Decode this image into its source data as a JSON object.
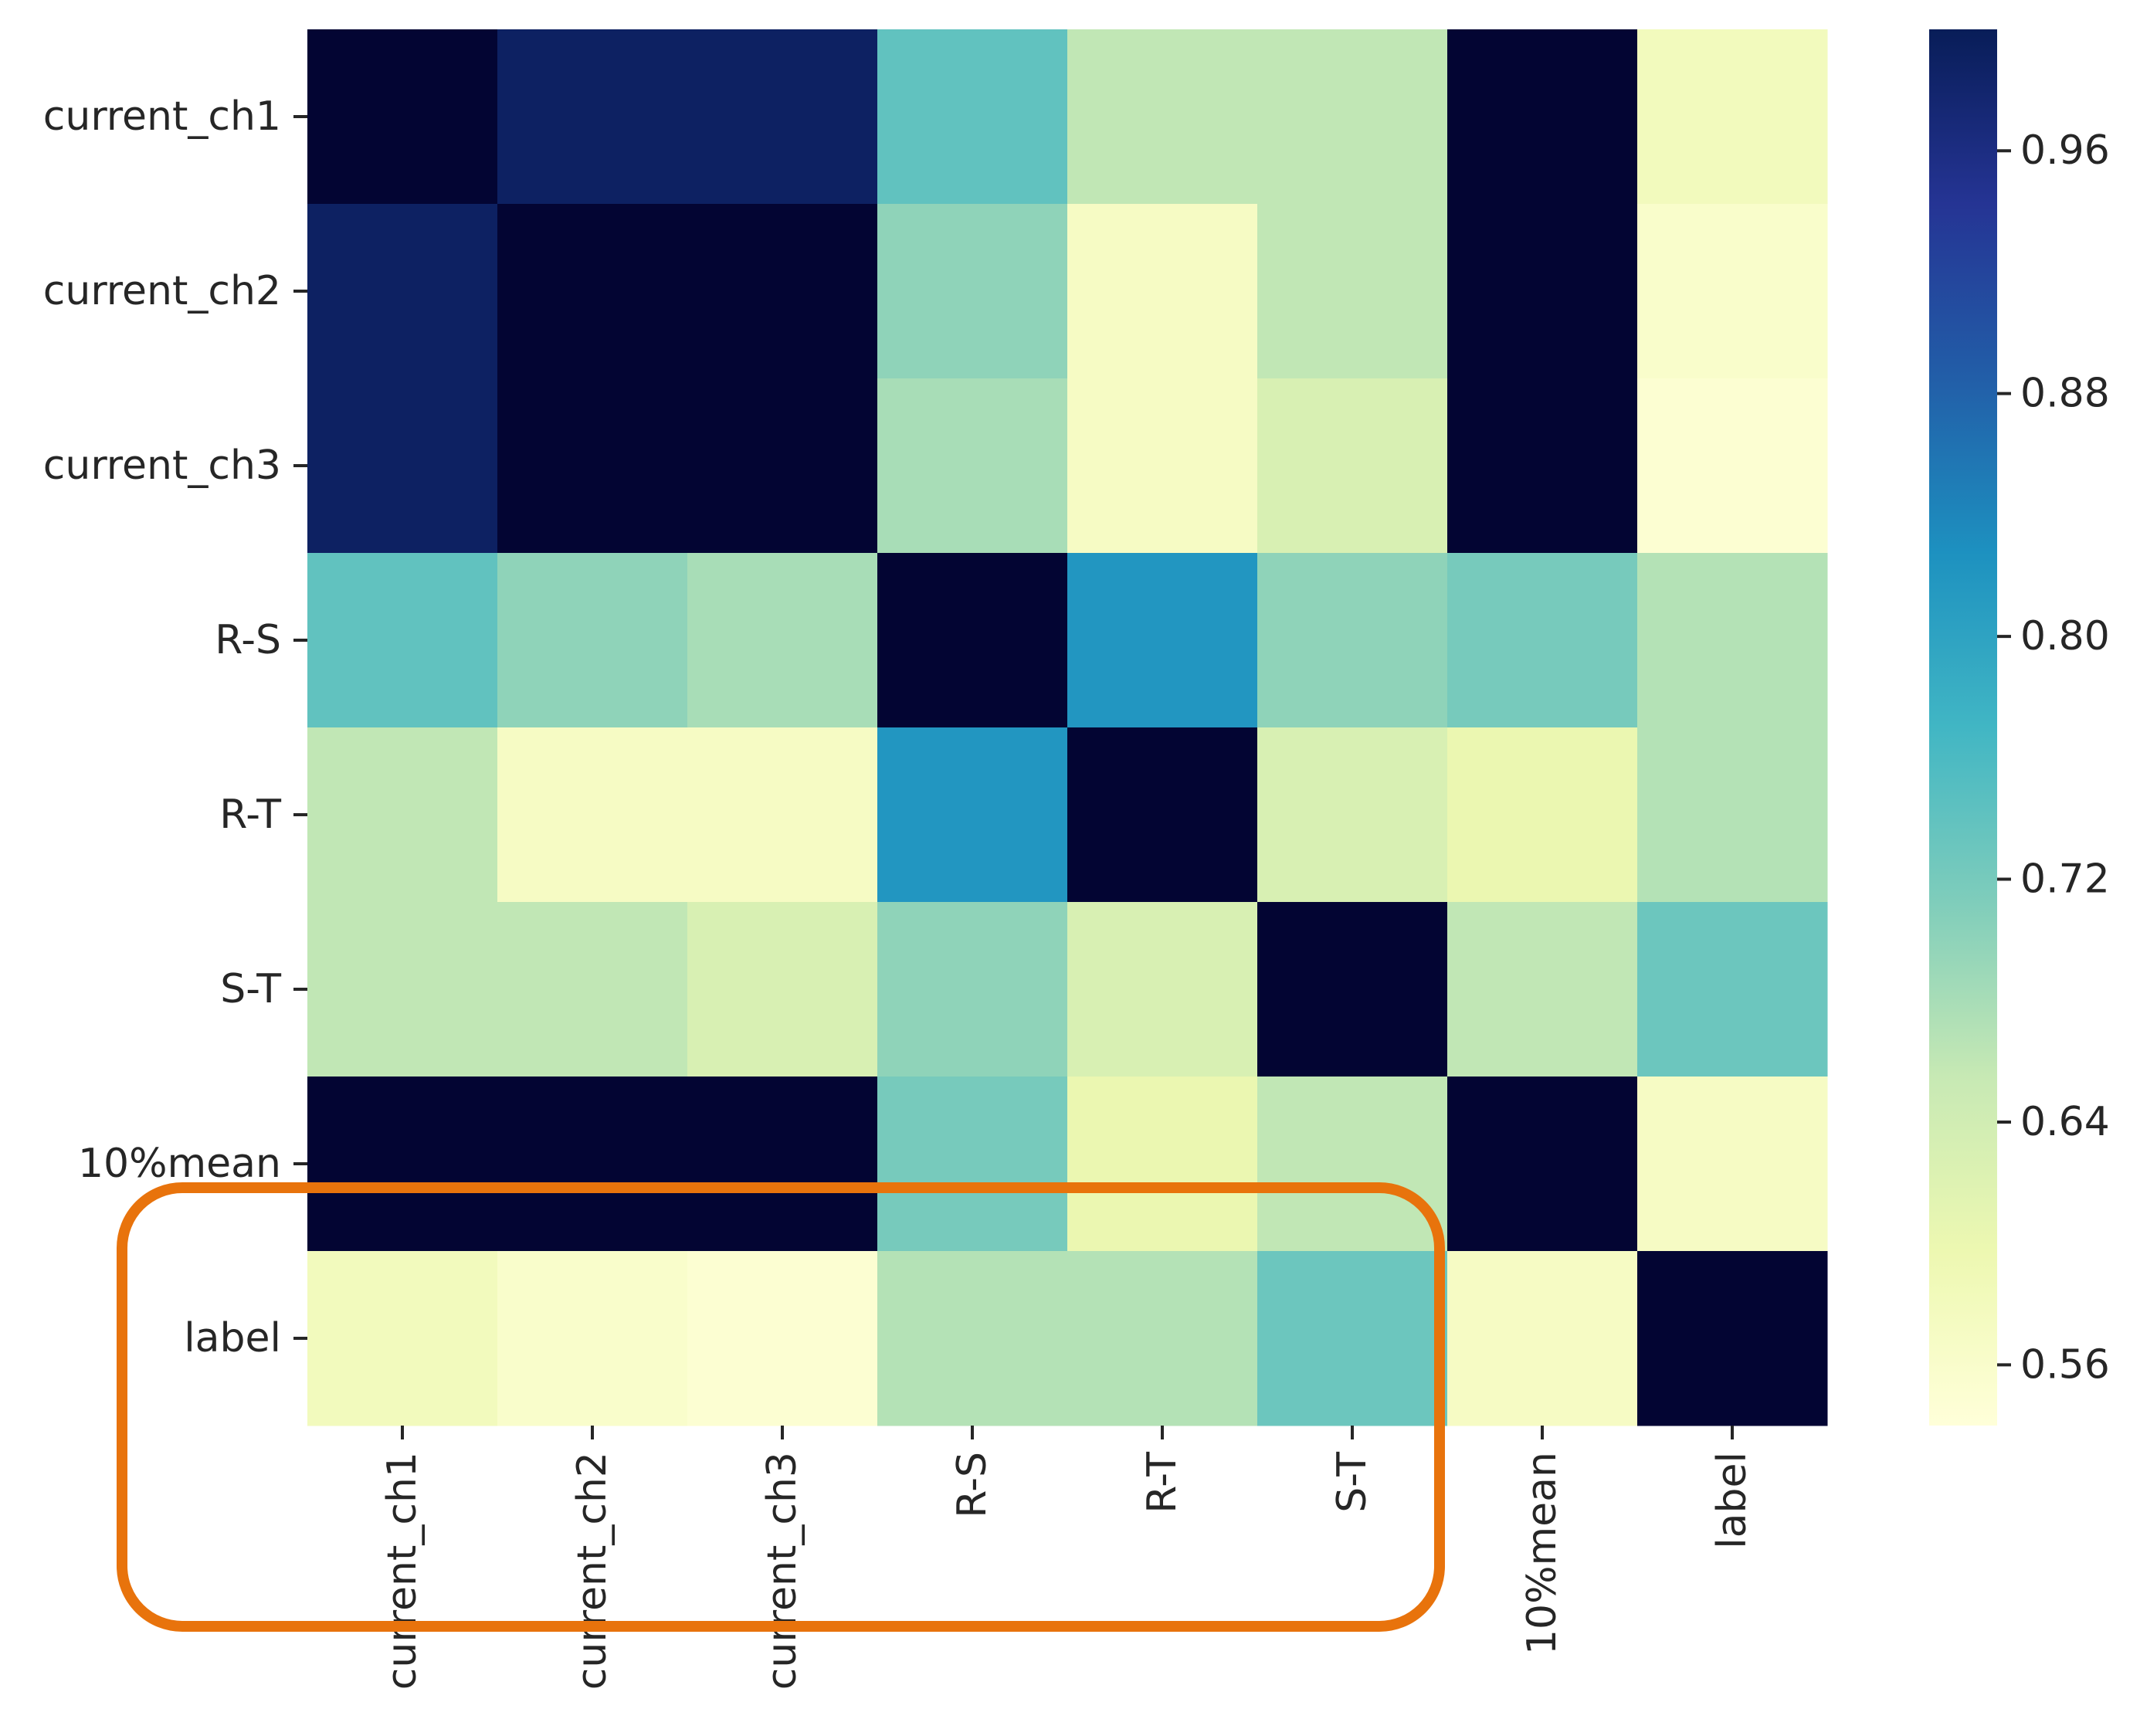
{
  "chart_data": {
    "type": "heatmap",
    "title": "",
    "xlabel": "",
    "ylabel": "",
    "categories": [
      "current_ch1",
      "current_ch2",
      "current_ch3",
      "R-S",
      "R-T",
      "S-T",
      "10%mean",
      "label"
    ],
    "values": [
      [
        1.0,
        0.99,
        0.99,
        0.74,
        0.66,
        0.66,
        1.0,
        0.58
      ],
      [
        0.99,
        1.0,
        1.0,
        0.7,
        0.57,
        0.66,
        1.0,
        0.56
      ],
      [
        0.99,
        1.0,
        1.0,
        0.68,
        0.57,
        0.63,
        1.0,
        0.55
      ],
      [
        0.74,
        0.7,
        0.68,
        1.0,
        0.82,
        0.7,
        0.72,
        0.67
      ],
      [
        0.66,
        0.57,
        0.57,
        0.82,
        1.0,
        0.63,
        0.6,
        0.67
      ],
      [
        0.66,
        0.66,
        0.63,
        0.7,
        0.63,
        1.0,
        0.66,
        0.73
      ],
      [
        1.0,
        1.0,
        1.0,
        0.72,
        0.6,
        0.66,
        1.0,
        0.57
      ],
      [
        0.58,
        0.56,
        0.55,
        0.67,
        0.67,
        0.73,
        0.57,
        1.0
      ]
    ],
    "colorbar": {
      "colormap": "YlGnBu",
      "range": [
        0.54,
        1.0
      ],
      "ticks": [
        0.96,
        0.88,
        0.8,
        0.72,
        0.64,
        0.56
      ],
      "tick_labels": [
        "0.96",
        "0.88",
        "0.80",
        "0.72",
        "0.64",
        "0.56"
      ]
    },
    "highlight": {
      "shape": "rounded-rectangle",
      "color": "#E8730C",
      "encloses": "row 'label' and x-axis labels current_ch1 through S-T"
    }
  }
}
